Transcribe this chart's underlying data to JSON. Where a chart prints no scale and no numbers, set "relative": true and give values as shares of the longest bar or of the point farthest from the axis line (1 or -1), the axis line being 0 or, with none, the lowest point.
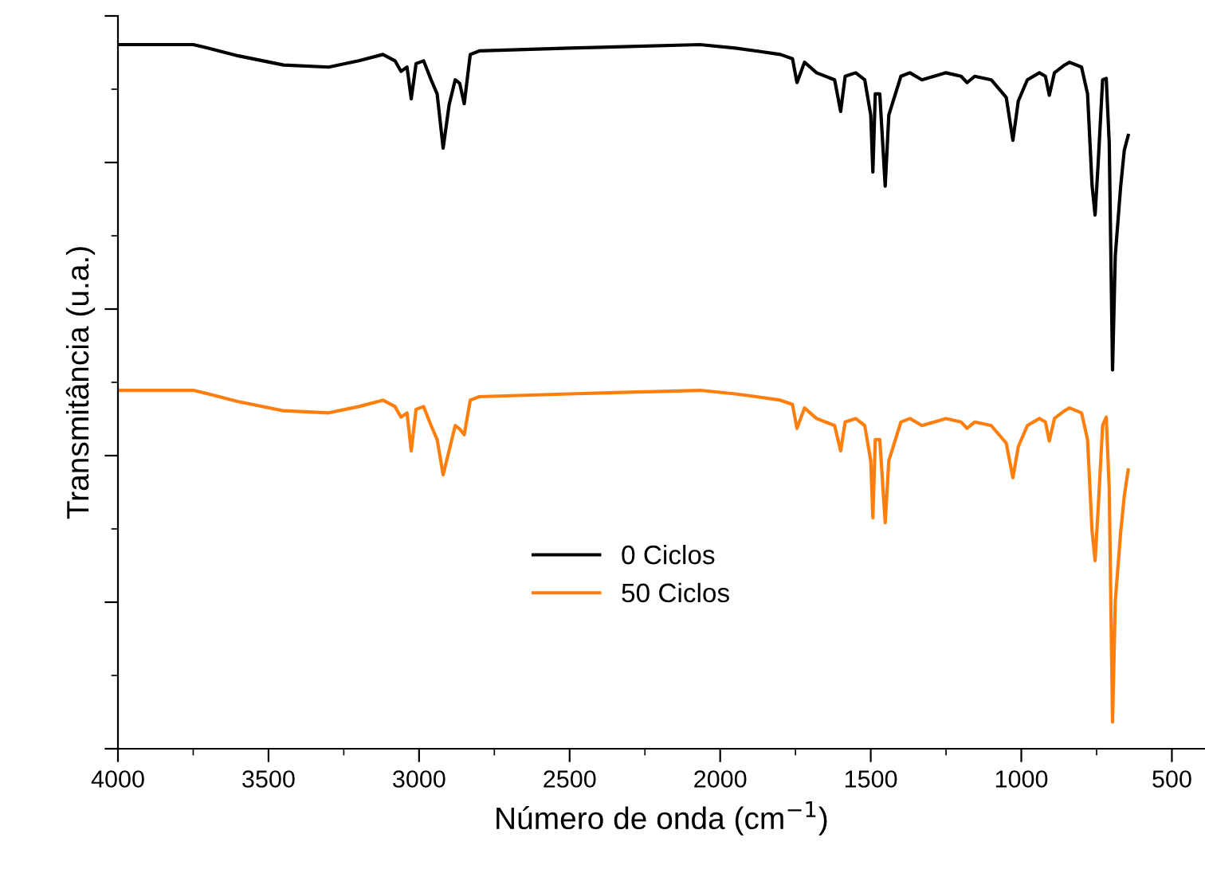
{
  "chart_data": {
    "type": "line",
    "relative": true,
    "xlabel": "Número de onda (cm$^{−1}$)",
    "ylabel": "Transmitância (u.a.)",
    "xlim": [
      4000,
      390
    ],
    "xticks": [
      4000,
      3500,
      3000,
      2500,
      2000,
      1500,
      1000,
      500
    ],
    "grid": false,
    "legend": "center",
    "marker": "none",
    "line_style": "solid",
    "x": [
      4000,
      3750,
      3700,
      3600,
      3450,
      3300,
      3200,
      3120,
      3080,
      3060,
      3040,
      3026,
      3010,
      2985,
      2960,
      2940,
      2920,
      2900,
      2880,
      2865,
      2850,
      2830,
      2800,
      2500,
      2067,
      1950,
      1880,
      1800,
      1760,
      1745,
      1720,
      1680,
      1620,
      1600,
      1585,
      1550,
      1520,
      1500,
      1493,
      1485,
      1470,
      1452,
      1440,
      1400,
      1370,
      1330,
      1250,
      1200,
      1180,
      1155,
      1100,
      1070,
      1050,
      1028,
      1010,
      980,
      940,
      920,
      907,
      890,
      860,
      840,
      800,
      780,
      765,
      755,
      745,
      730,
      718,
      708,
      697,
      688,
      670,
      658,
      645
    ],
    "series": [
      {
        "name": "0 Ciclos",
        "color": "#000000",
        "values": [
          1.0,
          1.0,
          0.995,
          0.984,
          0.971,
          0.968,
          0.977,
          0.986,
          0.977,
          0.962,
          0.968,
          0.923,
          0.973,
          0.977,
          0.95,
          0.93,
          0.853,
          0.915,
          0.95,
          0.945,
          0.916,
          0.986,
          0.991,
          0.995,
          1.0,
          0.995,
          0.991,
          0.986,
          0.98,
          0.946,
          0.975,
          0.96,
          0.95,
          0.905,
          0.955,
          0.96,
          0.95,
          0.9,
          0.819,
          0.93,
          0.93,
          0.799,
          0.9,
          0.955,
          0.96,
          0.95,
          0.96,
          0.955,
          0.946,
          0.955,
          0.95,
          0.935,
          0.925,
          0.864,
          0.92,
          0.95,
          0.96,
          0.955,
          0.928,
          0.96,
          0.97,
          0.975,
          0.968,
          0.93,
          0.8,
          0.758,
          0.83,
          0.95,
          0.952,
          0.86,
          0.538,
          0.7,
          0.799,
          0.85,
          0.871
        ]
      },
      {
        "name": "50 Ciclos",
        "color": "#ff7f0e",
        "values": [
          0.509,
          0.509,
          0.504,
          0.493,
          0.48,
          0.477,
          0.486,
          0.495,
          0.486,
          0.471,
          0.477,
          0.423,
          0.482,
          0.486,
          0.459,
          0.439,
          0.389,
          0.424,
          0.459,
          0.454,
          0.446,
          0.495,
          0.5,
          0.504,
          0.509,
          0.504,
          0.5,
          0.495,
          0.489,
          0.455,
          0.484,
          0.469,
          0.459,
          0.423,
          0.464,
          0.469,
          0.459,
          0.409,
          0.328,
          0.439,
          0.439,
          0.321,
          0.409,
          0.464,
          0.469,
          0.459,
          0.469,
          0.464,
          0.455,
          0.464,
          0.459,
          0.444,
          0.434,
          0.385,
          0.429,
          0.459,
          0.469,
          0.464,
          0.437,
          0.469,
          0.479,
          0.484,
          0.477,
          0.439,
          0.309,
          0.267,
          0.339,
          0.459,
          0.471,
          0.369,
          0.038,
          0.209,
          0.308,
          0.359,
          0.396
        ]
      }
    ]
  }
}
